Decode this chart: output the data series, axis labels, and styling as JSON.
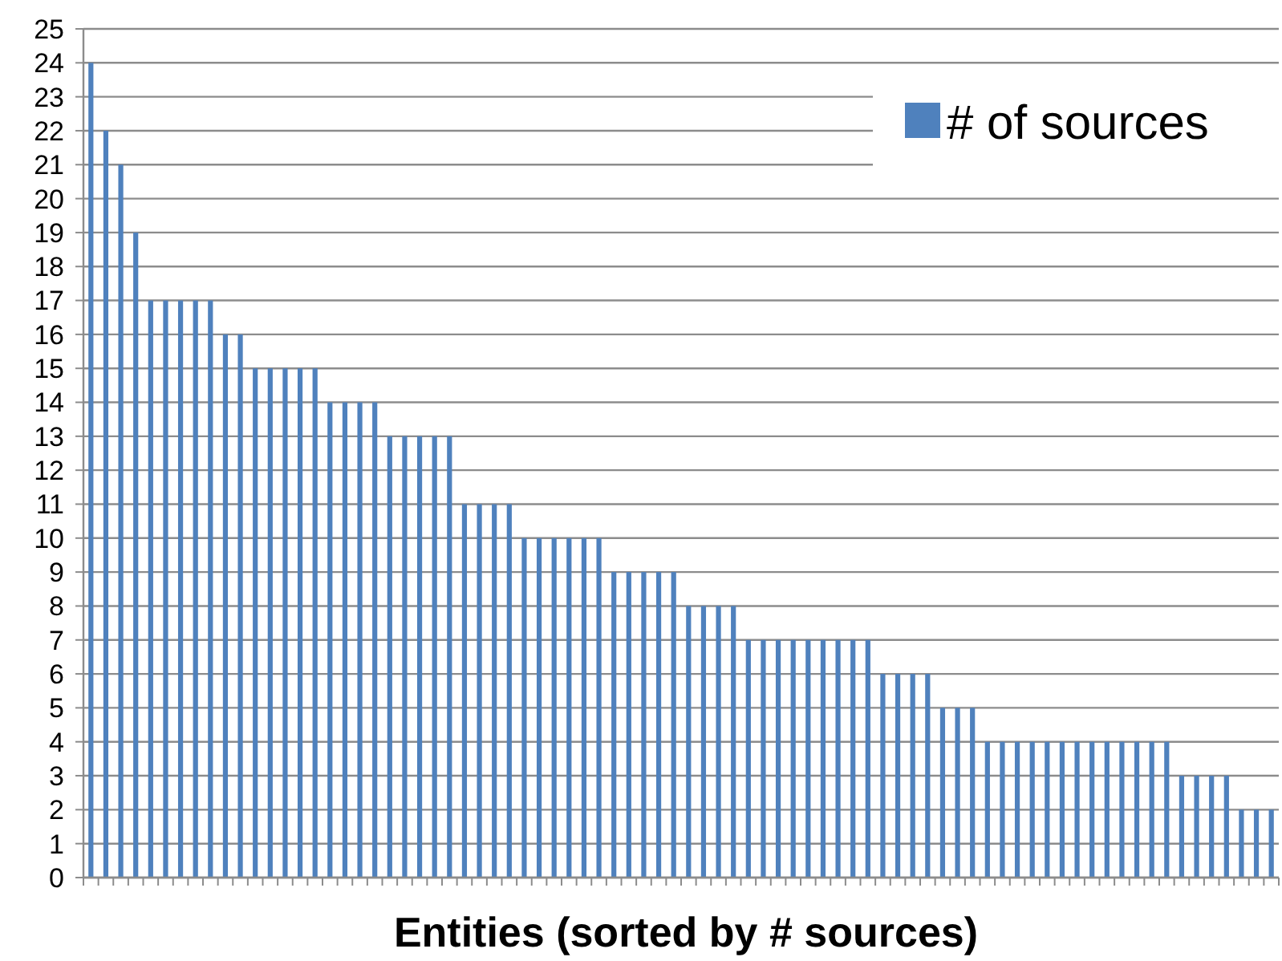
{
  "chart_data": {
    "type": "bar",
    "xlabel": "Entities (sorted by # sources)",
    "categories": [
      null,
      null,
      null,
      null,
      null,
      null,
      null,
      null,
      null,
      null,
      null,
      null,
      null,
      null,
      null,
      null,
      null,
      null,
      null,
      null,
      null,
      null,
      null,
      null,
      null,
      null,
      null,
      null,
      null,
      null,
      null,
      null,
      null,
      null,
      null,
      null,
      null,
      null,
      null,
      null,
      null,
      null,
      null,
      null,
      null,
      null,
      null,
      null,
      null,
      null,
      null,
      null,
      null,
      null,
      null,
      null,
      null,
      null,
      null,
      null,
      null,
      null,
      null,
      null,
      null,
      null,
      null,
      null,
      null,
      null,
      null,
      null,
      null,
      null,
      null,
      null,
      null,
      null,
      null,
      null
    ],
    "series": [
      {
        "name": "# of sources",
        "color": "#4f81bd",
        "values": [
          24,
          22,
          21,
          19,
          17,
          17,
          17,
          17,
          17,
          16,
          16,
          15,
          15,
          15,
          15,
          15,
          14,
          14,
          14,
          14,
          13,
          13,
          13,
          13,
          13,
          11,
          11,
          11,
          11,
          10,
          10,
          10,
          10,
          10,
          10,
          9,
          9,
          9,
          9,
          9,
          8,
          8,
          8,
          8,
          7,
          7,
          7,
          7,
          7,
          7,
          7,
          7,
          7,
          6,
          6,
          6,
          6,
          5,
          5,
          5,
          4,
          4,
          4,
          4,
          4,
          4,
          4,
          4,
          4,
          4,
          4,
          4,
          4,
          3,
          3,
          3,
          3,
          2,
          2,
          2
        ]
      }
    ],
    "ylim": [
      0,
      25
    ],
    "yticks": [
      0,
      1,
      2,
      3,
      4,
      5,
      6,
      7,
      8,
      9,
      10,
      11,
      12,
      13,
      14,
      15,
      16,
      17,
      18,
      19,
      20,
      21,
      22,
      23,
      24,
      25
    ],
    "grid": "y",
    "legend": "top right"
  }
}
